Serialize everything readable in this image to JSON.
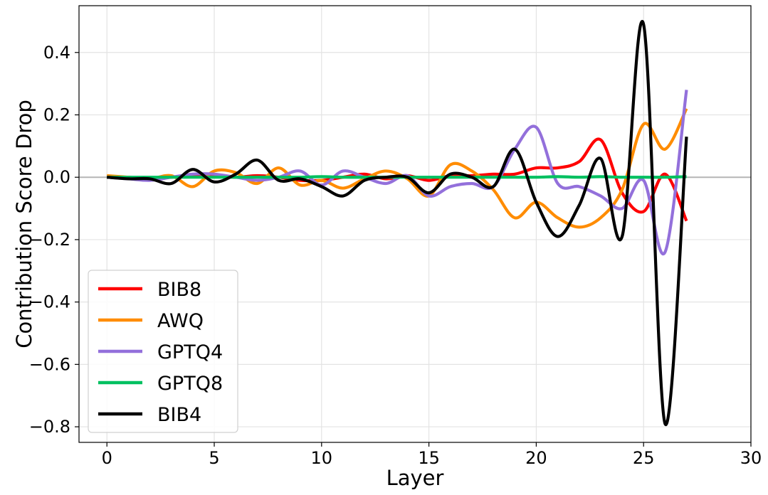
{
  "chart_data": {
    "type": "line",
    "title": "",
    "xlabel": "Layer",
    "ylabel": "Contribution Score Drop",
    "xlim": [
      -1.3,
      30
    ],
    "ylim": [
      -0.85,
      0.55
    ],
    "xticks": [
      0,
      5,
      10,
      15,
      20,
      25,
      30
    ],
    "xtick_labels": [
      "0",
      "5",
      "10",
      "15",
      "20",
      "25",
      "30"
    ],
    "yticks": [
      -0.8,
      -0.6,
      -0.4,
      -0.2,
      0.0,
      0.2,
      0.4
    ],
    "ytick_labels": [
      "−0.8",
      "−0.6",
      "−0.4",
      "−0.2",
      "0.0",
      "0.2",
      "0.4"
    ],
    "grid": true,
    "zero_line": true,
    "legend_position": "lower-left",
    "x": [
      0,
      1,
      2,
      3,
      4,
      5,
      6,
      7,
      8,
      9,
      10,
      11,
      12,
      13,
      14,
      15,
      16,
      17,
      18,
      19,
      20,
      21,
      22,
      23,
      24,
      25,
      26,
      27
    ],
    "series": [
      {
        "name": "BIB8",
        "color": "#ff0000",
        "values": [
          0.0,
          0.0,
          -0.005,
          0.0,
          0.005,
          0.005,
          0.0,
          0.005,
          0.0,
          -0.01,
          -0.01,
          0.0,
          0.01,
          -0.005,
          0.005,
          -0.01,
          0.005,
          0.005,
          0.01,
          0.01,
          0.03,
          0.03,
          0.05,
          0.12,
          -0.05,
          -0.11,
          0.01,
          -0.14
        ]
      },
      {
        "name": "AWQ",
        "color": "#ff8c00",
        "values": [
          0.005,
          0.0,
          -0.005,
          0.005,
          -0.03,
          0.02,
          0.015,
          -0.02,
          0.03,
          -0.025,
          -0.01,
          -0.035,
          -0.005,
          0.02,
          -0.005,
          -0.06,
          0.04,
          0.02,
          -0.04,
          -0.13,
          -0.08,
          -0.13,
          -0.16,
          -0.13,
          -0.04,
          0.17,
          0.09,
          0.22
        ]
      },
      {
        "name": "GPTQ4",
        "color": "#9370db",
        "values": [
          0.0,
          -0.005,
          -0.01,
          0.0,
          0.01,
          0.01,
          0.0,
          -0.01,
          0.0,
          0.02,
          -0.025,
          0.02,
          0.0,
          -0.02,
          0.005,
          -0.06,
          -0.03,
          -0.02,
          -0.03,
          0.09,
          0.16,
          -0.02,
          -0.03,
          -0.06,
          -0.1,
          -0.01,
          -0.24,
          0.28
        ]
      },
      {
        "name": "GPTQ8",
        "color": "#00c060",
        "values": [
          0.0,
          0.0,
          0.0,
          0.0,
          0.0,
          0.0,
          0.0,
          0.0,
          0.0,
          0.0,
          0.002,
          0.0,
          0.0,
          0.0,
          0.0,
          0.0,
          0.0,
          0.0,
          0.0,
          0.0,
          0.0,
          0.002,
          0.0,
          0.002,
          0.0,
          0.0,
          0.0,
          0.002
        ]
      },
      {
        "name": "BIB4",
        "color": "#000000",
        "values": [
          0.0,
          -0.005,
          -0.005,
          -0.02,
          0.025,
          -0.015,
          0.01,
          0.055,
          -0.01,
          -0.005,
          -0.03,
          -0.06,
          -0.01,
          0.0,
          0.0,
          -0.05,
          0.01,
          0.0,
          -0.03,
          0.09,
          -0.08,
          -0.19,
          -0.09,
          0.06,
          -0.19,
          0.49,
          -0.79,
          0.13
        ]
      }
    ]
  }
}
